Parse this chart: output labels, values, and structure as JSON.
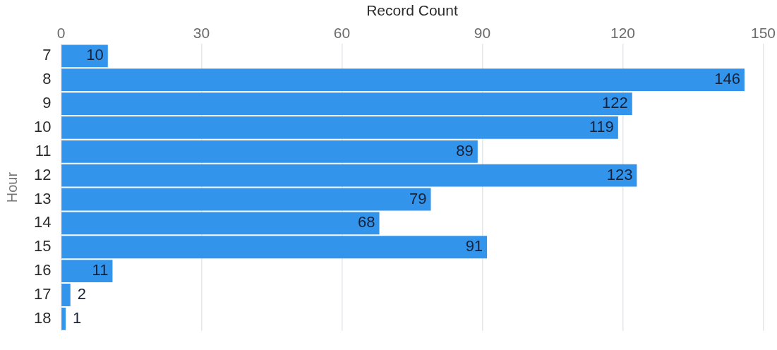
{
  "chart_data": {
    "type": "bar",
    "orientation": "horizontal",
    "xlabel": "Record Count",
    "ylabel": "Hour",
    "categories": [
      "7",
      "8",
      "9",
      "10",
      "11",
      "12",
      "13",
      "14",
      "15",
      "16",
      "17",
      "18"
    ],
    "values": [
      10,
      146,
      122,
      119,
      89,
      123,
      79,
      68,
      91,
      11,
      2,
      1
    ],
    "color": "#3394eb",
    "xlim": [
      0,
      150
    ],
    "xticks": [
      0,
      30,
      60,
      90,
      120,
      150
    ],
    "grid": "x",
    "data_labels": true
  }
}
